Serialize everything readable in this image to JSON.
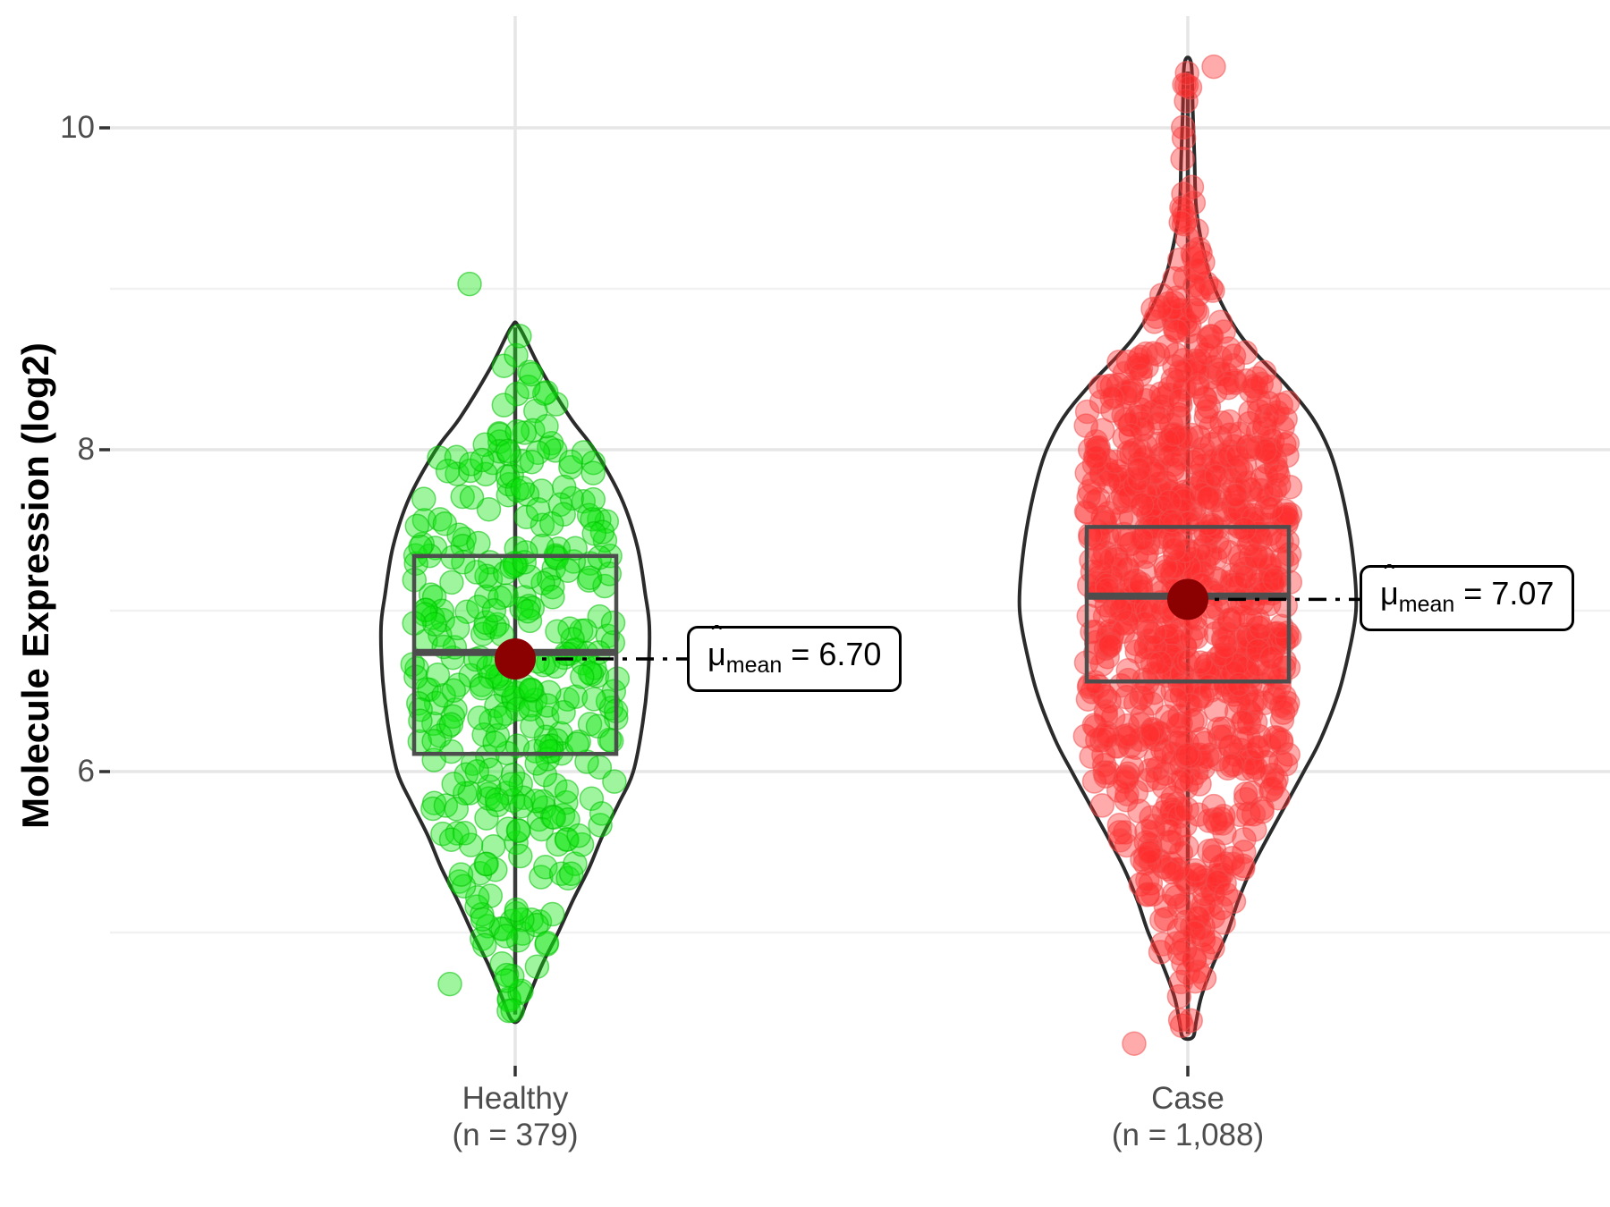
{
  "y_axis": {
    "label": "Molecule Expression (log2)",
    "major_ticks": [
      {
        "label": "10",
        "value": 10
      },
      {
        "label": "8",
        "value": 8
      },
      {
        "label": "6",
        "value": 6
      }
    ],
    "minor_ticks": [
      9,
      7,
      5
    ]
  },
  "x_axis": {
    "categories": [
      {
        "line1": "Healthy",
        "line2": "(n = 379)"
      },
      {
        "line1": "Case",
        "line2": "(n = 1,088)"
      }
    ]
  },
  "annotations": [
    {
      "hat": "ˆ",
      "mu": "μ",
      "sub": "mean",
      "eq": " = ",
      "value": "6.70"
    },
    {
      "hat": "ˆ",
      "mu": "μ",
      "sub": "mean",
      "eq": " = ",
      "value": "7.07"
    }
  ],
  "colors": {
    "healthy_point": "#0de60d",
    "healthy_point_stroke": "#00c000",
    "case_point": "#ff2d2d",
    "case_point_stroke": "#f05050",
    "mean_dot": "#8b0000",
    "box_stroke": "#4d4d4d",
    "whisker": "#3a3a3a",
    "violin_stroke": "#2b2b2b",
    "grid_major": "#e6e6e6",
    "grid_minor": "#f1f1f1",
    "tick_mark": "#333333",
    "connector": "#000000"
  },
  "chart_data": {
    "type": "violin+box+jittered-scatter",
    "title": "",
    "xlabel": "",
    "ylabel": "Molecule Expression (log2)",
    "ylim": [
      4.2,
      10.7
    ],
    "grid": "major and minor horizontal, major vertical at category centers",
    "legend": "none",
    "groups": [
      {
        "name": "Healthy",
        "n": 379,
        "mean": 6.7,
        "mean_label": "6.70",
        "median": 6.74,
        "q1": 6.11,
        "q3": 7.34,
        "whisker_low": 4.49,
        "whisker_high": 8.76,
        "violin_range": [
          4.46,
          8.76
        ],
        "violin_profile": [
          [
            4.46,
            0.03
          ],
          [
            4.6,
            0.1
          ],
          [
            4.8,
            0.2
          ],
          [
            5.0,
            0.32
          ],
          [
            5.2,
            0.43
          ],
          [
            5.4,
            0.55
          ],
          [
            5.6,
            0.65
          ],
          [
            5.8,
            0.77
          ],
          [
            6.0,
            0.88
          ],
          [
            6.3,
            0.95
          ],
          [
            6.6,
            0.99
          ],
          [
            6.9,
            1.0
          ],
          [
            7.1,
            0.97
          ],
          [
            7.4,
            0.91
          ],
          [
            7.7,
            0.79
          ],
          [
            8.0,
            0.59
          ],
          [
            8.2,
            0.41
          ],
          [
            8.5,
            0.19
          ],
          [
            8.76,
            0.03
          ]
        ],
        "outliers": [
          {
            "v": 9.03,
            "dx": -51
          },
          {
            "v": 4.68,
            "dx": -73
          }
        ],
        "seed": 20240
      },
      {
        "name": "Case",
        "n": 1088,
        "mean": 7.07,
        "mean_label": "7.07",
        "median": 7.09,
        "q1": 6.56,
        "q3": 7.52,
        "whisker_low": 4.37,
        "whisker_high": 10.35,
        "violin_range": [
          4.35,
          10.4
        ],
        "violin_profile": [
          [
            4.35,
            0.03
          ],
          [
            4.45,
            0.05
          ],
          [
            4.6,
            0.08
          ],
          [
            4.8,
            0.15
          ],
          [
            5.0,
            0.235
          ],
          [
            5.2,
            0.3
          ],
          [
            5.4,
            0.38
          ],
          [
            5.6,
            0.48
          ],
          [
            5.8,
            0.585
          ],
          [
            6.0,
            0.69
          ],
          [
            6.2,
            0.79
          ],
          [
            6.5,
            0.9
          ],
          [
            6.8,
            0.97
          ],
          [
            7.0,
            1.0
          ],
          [
            7.2,
            0.995
          ],
          [
            7.5,
            0.96
          ],
          [
            7.8,
            0.9
          ],
          [
            8.0,
            0.84
          ],
          [
            8.2,
            0.74
          ],
          [
            8.4,
            0.585
          ],
          [
            8.7,
            0.32
          ],
          [
            9.0,
            0.16
          ],
          [
            9.25,
            0.09
          ],
          [
            9.5,
            0.05
          ],
          [
            9.8,
            0.04
          ],
          [
            10.1,
            0.03
          ],
          [
            10.4,
            0.02
          ]
        ],
        "outliers": [
          {
            "v": 10.38,
            "dx": 29
          },
          {
            "v": 4.31,
            "dx": -60
          }
        ],
        "seed": 777
      }
    ]
  }
}
